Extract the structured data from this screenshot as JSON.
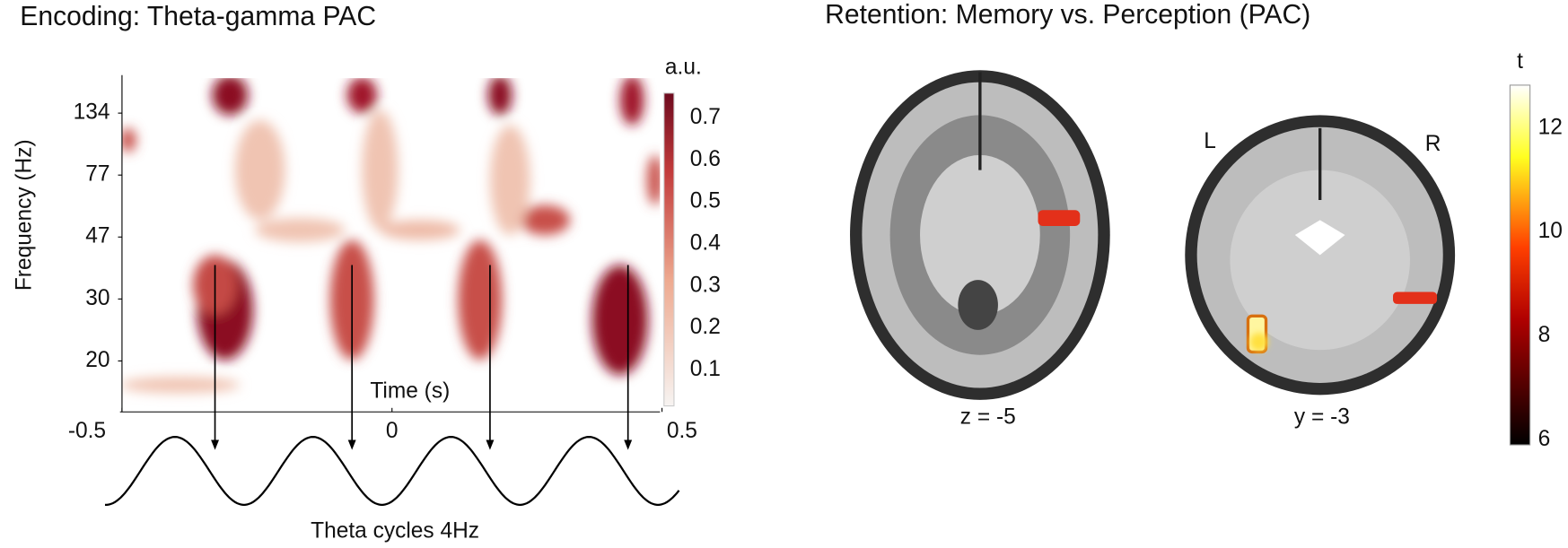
{
  "left_panel": {
    "title": "Encoding: Theta-gamma PAC",
    "y_label": "Frequency (Hz)",
    "x_label": "Time (s)",
    "yticks": [
      134,
      77,
      47,
      30,
      20
    ],
    "xticks": [
      -0.5,
      0,
      0.5
    ],
    "colorbar_label": "a.u.",
    "colorbar_ticks": [
      0.7,
      0.6,
      0.5,
      0.4,
      0.3,
      0.2,
      0.1
    ],
    "theta_label": "Theta cycles 4Hz"
  },
  "right_panel": {
    "title": "Retention: Memory vs. Perception (PAC)",
    "slices": [
      {
        "label": "z = -5"
      },
      {
        "label": "y = -3"
      }
    ],
    "left_label": "L",
    "right_label": "R",
    "colorbar_label": "t",
    "colorbar_ticks": [
      12,
      10,
      8,
      6
    ]
  }
}
